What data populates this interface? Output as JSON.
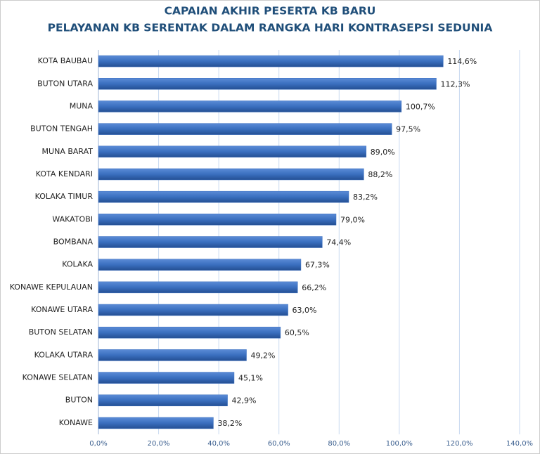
{
  "chart_data": {
    "type": "bar",
    "orientation": "horizontal",
    "title": "CAPAIAN AKHIR PESERTA KB BARU",
    "subtitle": "PELAYANAN KB SERENTAK DALAM RANGKA HARI KONTRASEPSI SEDUNIA",
    "categories": [
      "KOTA BAUBAU",
      "BUTON UTARA",
      "MUNA",
      "BUTON TENGAH",
      "MUNA BARAT",
      "KOTA KENDARI",
      "KOLAKA TIMUR",
      "WAKATOBI",
      "BOMBANA",
      "KOLAKA",
      "KONAWE KEPULAUAN",
      "KONAWE UTARA",
      "BUTON SELATAN",
      "KOLAKA UTARA",
      "KONAWE SELATAN",
      "BUTON",
      "KONAWE"
    ],
    "values": [
      114.6,
      112.3,
      100.7,
      97.5,
      89.0,
      88.2,
      83.2,
      79.0,
      74.4,
      67.3,
      66.2,
      63.0,
      60.5,
      49.2,
      45.1,
      42.9,
      38.2
    ],
    "value_labels": [
      "114,6%",
      "112,3%",
      "100,7%",
      "97,5%",
      "89,0%",
      "88,2%",
      "83,2%",
      "79,0%",
      "74,4%",
      "67,3%",
      "66,2%",
      "63,0%",
      "60,5%",
      "49,2%",
      "45,1%",
      "42,9%",
      "38,2%"
    ],
    "color": "#3a6fbf",
    "xlim": [
      0,
      140
    ],
    "xticks": [
      {
        "value": 0,
        "label": "0,0%"
      },
      {
        "value": 20,
        "label": "20,0%"
      },
      {
        "value": 40,
        "label": "40,0%"
      },
      {
        "value": 60,
        "label": "60,0%"
      },
      {
        "value": 80,
        "label": "80,0%"
      },
      {
        "value": 100,
        "label": "100,0%"
      },
      {
        "value": 120,
        "label": "120,0%"
      },
      {
        "value": 140,
        "label": "140,0%"
      }
    ],
    "grid": true
  }
}
